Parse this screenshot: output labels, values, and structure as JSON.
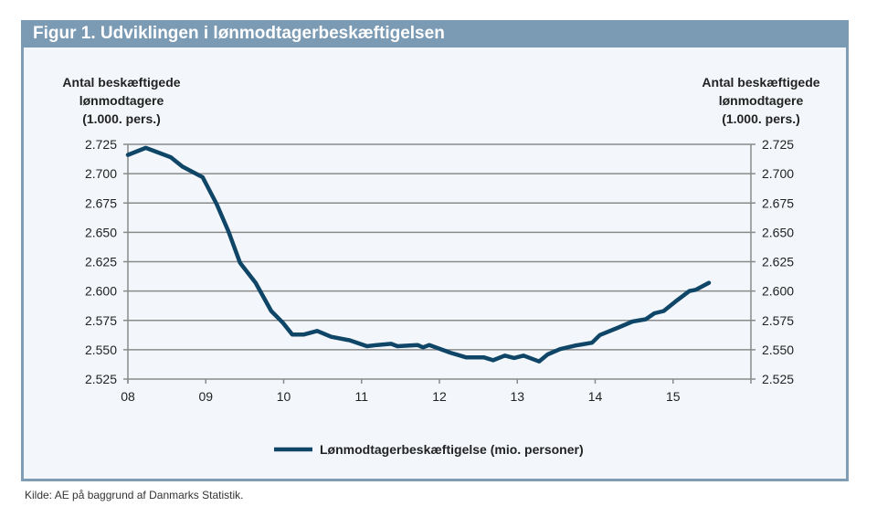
{
  "title": "Figur 1. Udviklingen i lønmodtagerbeskæftigelsen",
  "source": "Kilde: AE på baggrund af Danmarks Statistik.",
  "colors": {
    "header": "#7b9ab3",
    "line": "#0f4567",
    "background": "#f3f7fb",
    "grid": "#8a8a8a"
  },
  "chart_data": {
    "type": "line",
    "ylabel_left": [
      "Antal beskæftigede",
      "lønmodtagere",
      "(1.000. pers.)"
    ],
    "ylabel_right": [
      "Antal beskæftigede",
      "lønmodtagere",
      "(1.000. pers.)"
    ],
    "ylim": [
      2.525,
      2.725
    ],
    "yticks": [
      "2.725",
      "2.700",
      "2.675",
      "2.650",
      "2.625",
      "2.600",
      "2.575",
      "2.550",
      "2.525"
    ],
    "xlim": [
      2008,
      2016
    ],
    "xticks": [
      "08",
      "09",
      "10",
      "11",
      "12",
      "13",
      "14",
      "15"
    ],
    "grid": true,
    "legend_position": "bottom",
    "series": [
      {
        "name": "Lønmodtagerbeskæftigelse (mio. personer)",
        "x": [
          2008.0,
          2008.23,
          2008.55,
          2008.7,
          2008.96,
          2009.14,
          2009.29,
          2009.44,
          2009.64,
          2009.84,
          2009.99,
          2010.11,
          2010.26,
          2010.43,
          2010.61,
          2010.85,
          2011.07,
          2011.2,
          2011.38,
          2011.46,
          2011.72,
          2011.79,
          2011.87,
          2012.14,
          2012.34,
          2012.57,
          2012.69,
          2012.84,
          2012.96,
          2013.08,
          2013.28,
          2013.39,
          2013.55,
          2013.74,
          2013.96,
          2014.06,
          2014.3,
          2014.48,
          2014.65,
          2014.76,
          2014.88,
          2015.03,
          2015.21,
          2015.29,
          2015.46
        ],
        "y": [
          2.716,
          2.722,
          2.714,
          2.706,
          2.697,
          2.674,
          2.651,
          2.624,
          2.607,
          2.583,
          2.573,
          2.563,
          2.563,
          2.566,
          2.561,
          2.558,
          2.553,
          2.554,
          2.555,
          2.553,
          2.554,
          2.552,
          2.554,
          2.5475,
          2.5435,
          2.5435,
          2.541,
          2.545,
          2.543,
          2.545,
          2.54,
          2.546,
          2.5505,
          2.5535,
          2.556,
          2.5625,
          2.569,
          2.574,
          2.576,
          2.581,
          2.583,
          2.591,
          2.6,
          2.601,
          2.607
        ]
      }
    ]
  }
}
